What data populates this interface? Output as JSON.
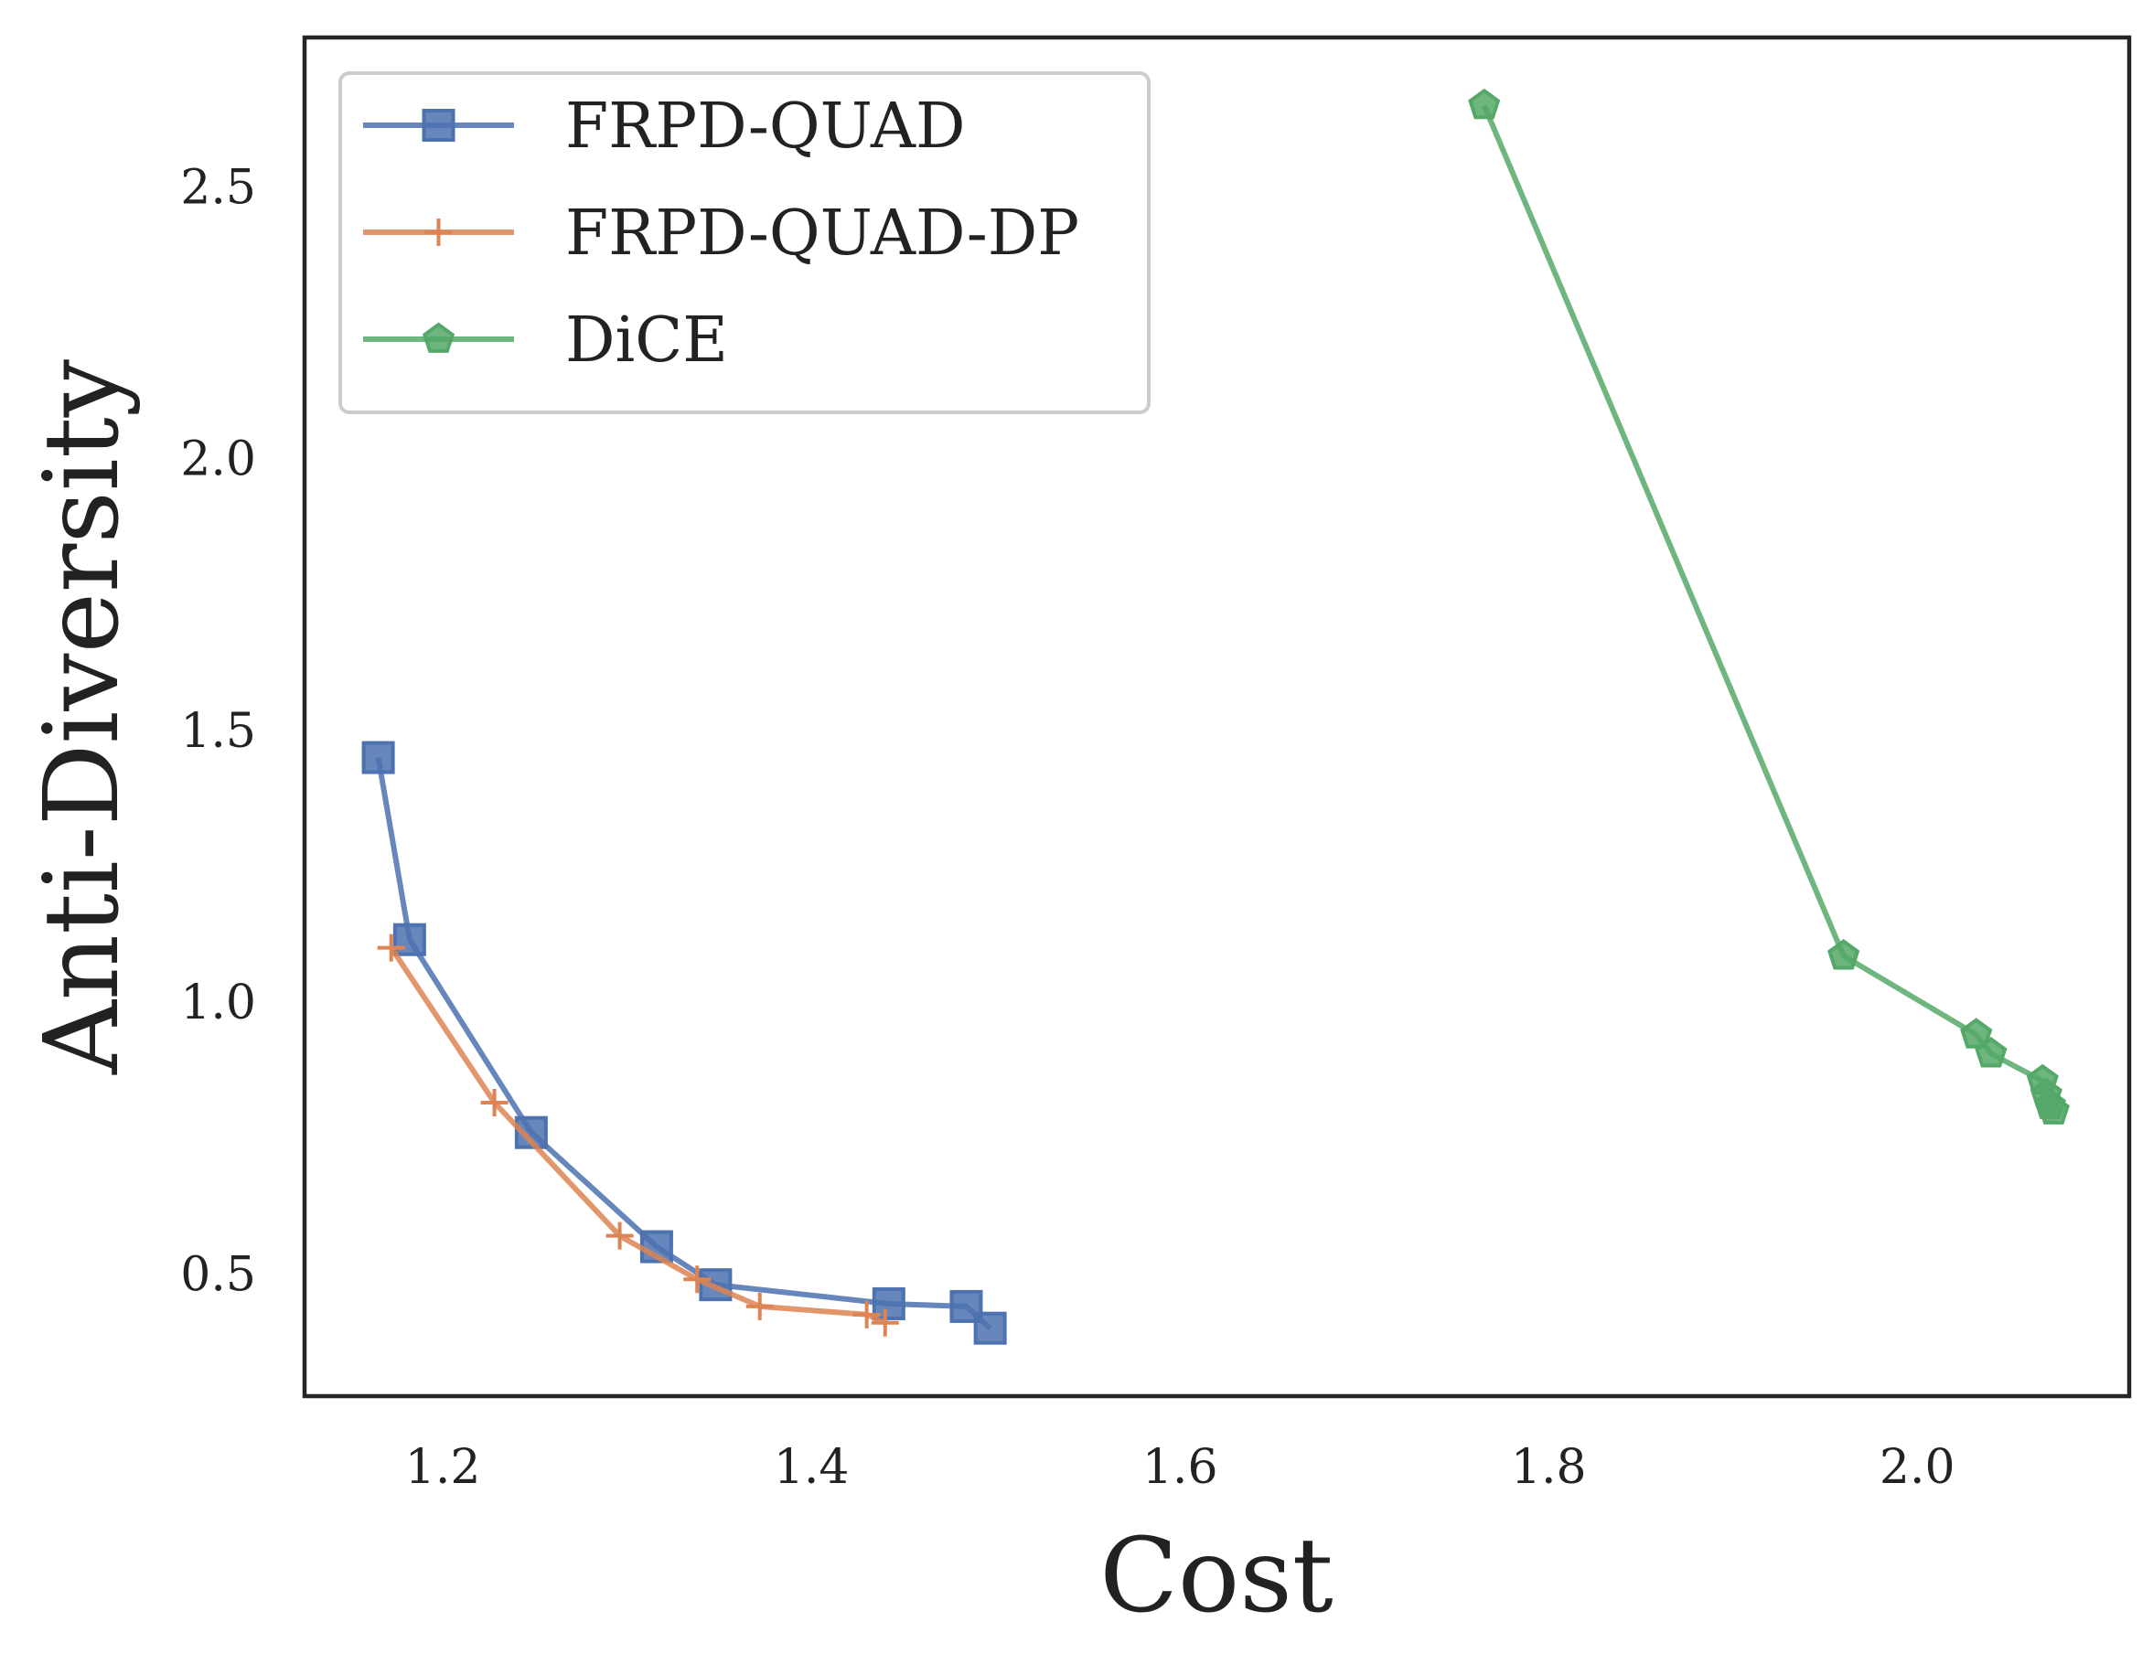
{
  "chart_data": {
    "type": "line",
    "xlabel": "Cost",
    "ylabel": "Anti-Diversity",
    "xlim": [
      1.125,
      2.115
    ],
    "ylim": [
      0.275,
      2.775
    ],
    "xticks": [
      1.2,
      1.4,
      1.6,
      1.8,
      2.0
    ],
    "xtick_labels": [
      "1.2",
      "1.4",
      "1.6",
      "1.8",
      "2.0"
    ],
    "yticks": [
      0.5,
      1.0,
      1.5,
      2.0,
      2.5
    ],
    "ytick_labels": [
      "0.5",
      "1.0",
      "1.5",
      "2.0",
      "2.5"
    ],
    "grid": false,
    "legend_position": "top-left",
    "series": [
      {
        "name": "FRPD-QUAD",
        "color": "#4c72b0",
        "marker": "square",
        "points": [
          [
            1.165,
            1.45
          ],
          [
            1.182,
            1.115
          ],
          [
            1.248,
            0.76
          ],
          [
            1.316,
            0.55
          ],
          [
            1.348,
            0.48
          ],
          [
            1.442,
            0.445
          ],
          [
            1.484,
            0.44
          ],
          [
            1.497,
            0.4
          ]
        ]
      },
      {
        "name": "FRPD-QUAD-DP",
        "color": "#dd8452",
        "marker": "plus",
        "points": [
          [
            1.172,
            1.1
          ],
          [
            1.228,
            0.815
          ],
          [
            1.296,
            0.57
          ],
          [
            1.338,
            0.49
          ],
          [
            1.372,
            0.44
          ],
          [
            1.43,
            0.425
          ],
          [
            1.44,
            0.41
          ]
        ]
      },
      {
        "name": "DiCE",
        "color": "#55a868",
        "marker": "pentagon",
        "points": [
          [
            1.765,
            2.65
          ],
          [
            1.96,
            1.085
          ],
          [
            2.032,
            0.94
          ],
          [
            2.04,
            0.905
          ],
          [
            2.068,
            0.855
          ],
          [
            2.07,
            0.83
          ],
          [
            2.072,
            0.81
          ],
          [
            2.074,
            0.8
          ]
        ]
      }
    ]
  }
}
